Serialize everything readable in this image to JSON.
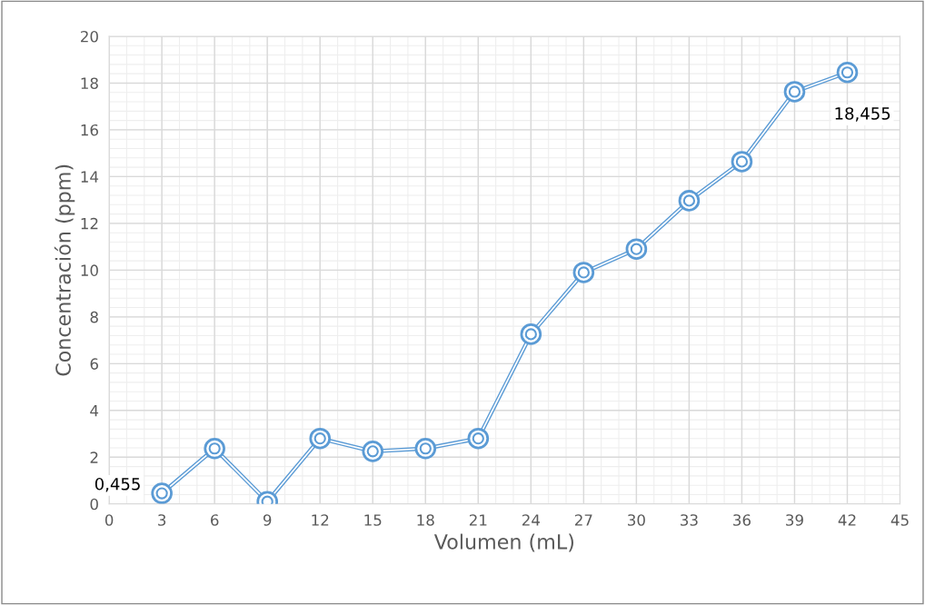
{
  "chart_data": {
    "type": "line",
    "xlabel": "Volumen (mL)",
    "ylabel": "Concentración (ppm)",
    "x": [
      3,
      6,
      9,
      12,
      15,
      18,
      21,
      24,
      27,
      30,
      33,
      36,
      39,
      42
    ],
    "series": [
      {
        "color": "#5b9bd5",
        "values": [
          0.455,
          2.37,
          0.1,
          2.8,
          2.25,
          2.37,
          2.8,
          7.26,
          9.9,
          10.9,
          12.97,
          14.64,
          17.63,
          18.455
        ]
      }
    ],
    "xlim": [
      0,
      45
    ],
    "xticks": [
      0,
      3,
      6,
      9,
      12,
      15,
      18,
      21,
      24,
      27,
      30,
      33,
      36,
      39,
      42,
      45
    ],
    "ylim": [
      0,
      20
    ],
    "yticks": [
      0,
      2,
      4,
      6,
      8,
      10,
      12,
      14,
      16,
      18,
      20
    ],
    "annotations": [
      {
        "text": "0,455",
        "x": 3,
        "y": 0.455
      },
      {
        "text": "18,455",
        "x": 42,
        "y": 18.455
      }
    ],
    "grid": true,
    "marker": "circle",
    "line_style": "solid"
  }
}
